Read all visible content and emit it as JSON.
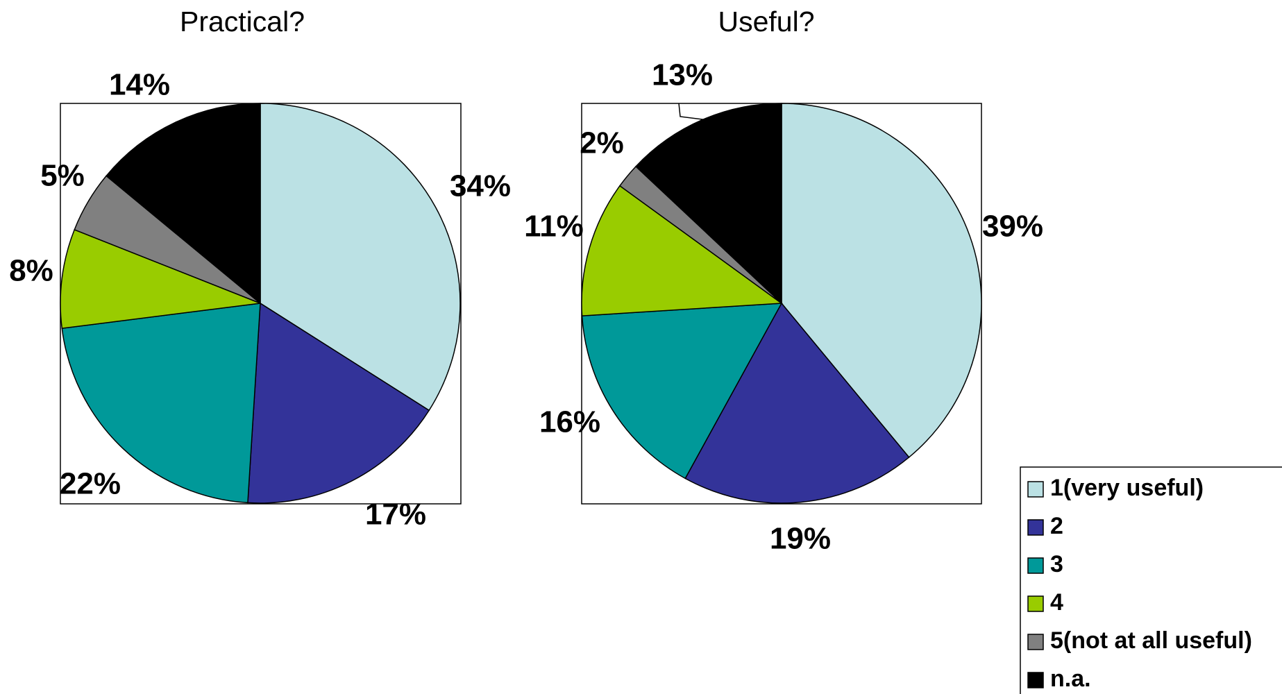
{
  "legend": {
    "entries": [
      "1(very useful)",
      "2",
      "3",
      "4",
      "5(not at all useful)",
      "n.a."
    ],
    "colors": [
      "#BBE1E4",
      "#333399",
      "#009999",
      "#99CC00",
      "#808080",
      "#000000"
    ]
  },
  "chart_data": [
    {
      "type": "pie",
      "title": "Practical?",
      "categories": [
        "1(very useful)",
        "2",
        "3",
        "4",
        "5(not at all useful)",
        "n.a."
      ],
      "values": [
        34,
        17,
        22,
        8,
        5,
        14
      ],
      "labels": [
        "34%",
        "17%",
        "22%",
        "8%",
        "5%",
        "14%"
      ],
      "start_angle_deg": 0,
      "direction": "clockwise",
      "frame_border": true
    },
    {
      "type": "pie",
      "title": "Useful?",
      "categories": [
        "1(very useful)",
        "2",
        "3",
        "4",
        "5(not at all useful)",
        "n.a."
      ],
      "values": [
        39,
        19,
        16,
        11,
        2,
        13
      ],
      "labels": [
        "39%",
        "19%",
        "16%",
        "11%",
        "2%",
        "13%"
      ],
      "start_angle_deg": 0,
      "direction": "clockwise",
      "frame_border": true,
      "leader_line_for": "n.a."
    }
  ]
}
